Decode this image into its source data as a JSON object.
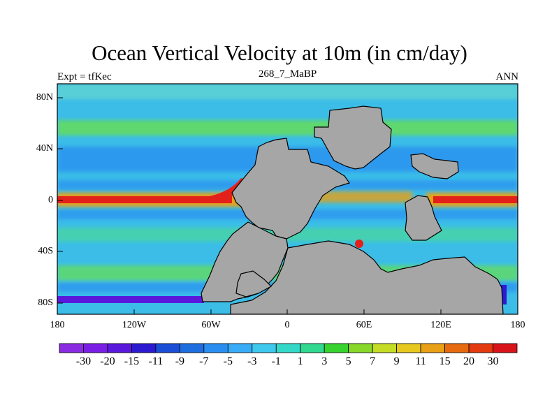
{
  "title": "Ocean Vertical Velocity at 10m (in cm/day)",
  "subtitle_left": "Expt = tfKec",
  "subtitle_center": "268_7_MaBP",
  "subtitle_right": "ANN",
  "y_ticks": [
    "80N",
    "40N",
    "0",
    "40S",
    "80S"
  ],
  "x_ticks": [
    "180",
    "120W",
    "60W",
    "0",
    "60E",
    "120E",
    "180"
  ],
  "colorbar": {
    "labels": [
      "-30",
      "-20",
      "-15",
      "-11",
      "-9",
      "-7",
      "-5",
      "-3",
      "-1",
      "1",
      "3",
      "5",
      "7",
      "9",
      "11",
      "15",
      "20",
      "30"
    ],
    "colors": [
      "#8a2be2",
      "#7a1ee6",
      "#5a18dd",
      "#2c1ad0",
      "#1a4ed6",
      "#1e6ee0",
      "#2a8ef0",
      "#38acf6",
      "#3ec8ee",
      "#34d8c8",
      "#30d890",
      "#36d22e",
      "#88d82a",
      "#c4dc24",
      "#e6c81e",
      "#e8a014",
      "#e66a10",
      "#e43a10",
      "#d8141a"
    ]
  },
  "colors": {
    "land": "#a6a6a6",
    "ocean_base": "#3bbde8",
    "band_green": "#5ed870",
    "upwelling_red": "#e4201a",
    "downwelling_blue": "#1a4ed6"
  }
}
